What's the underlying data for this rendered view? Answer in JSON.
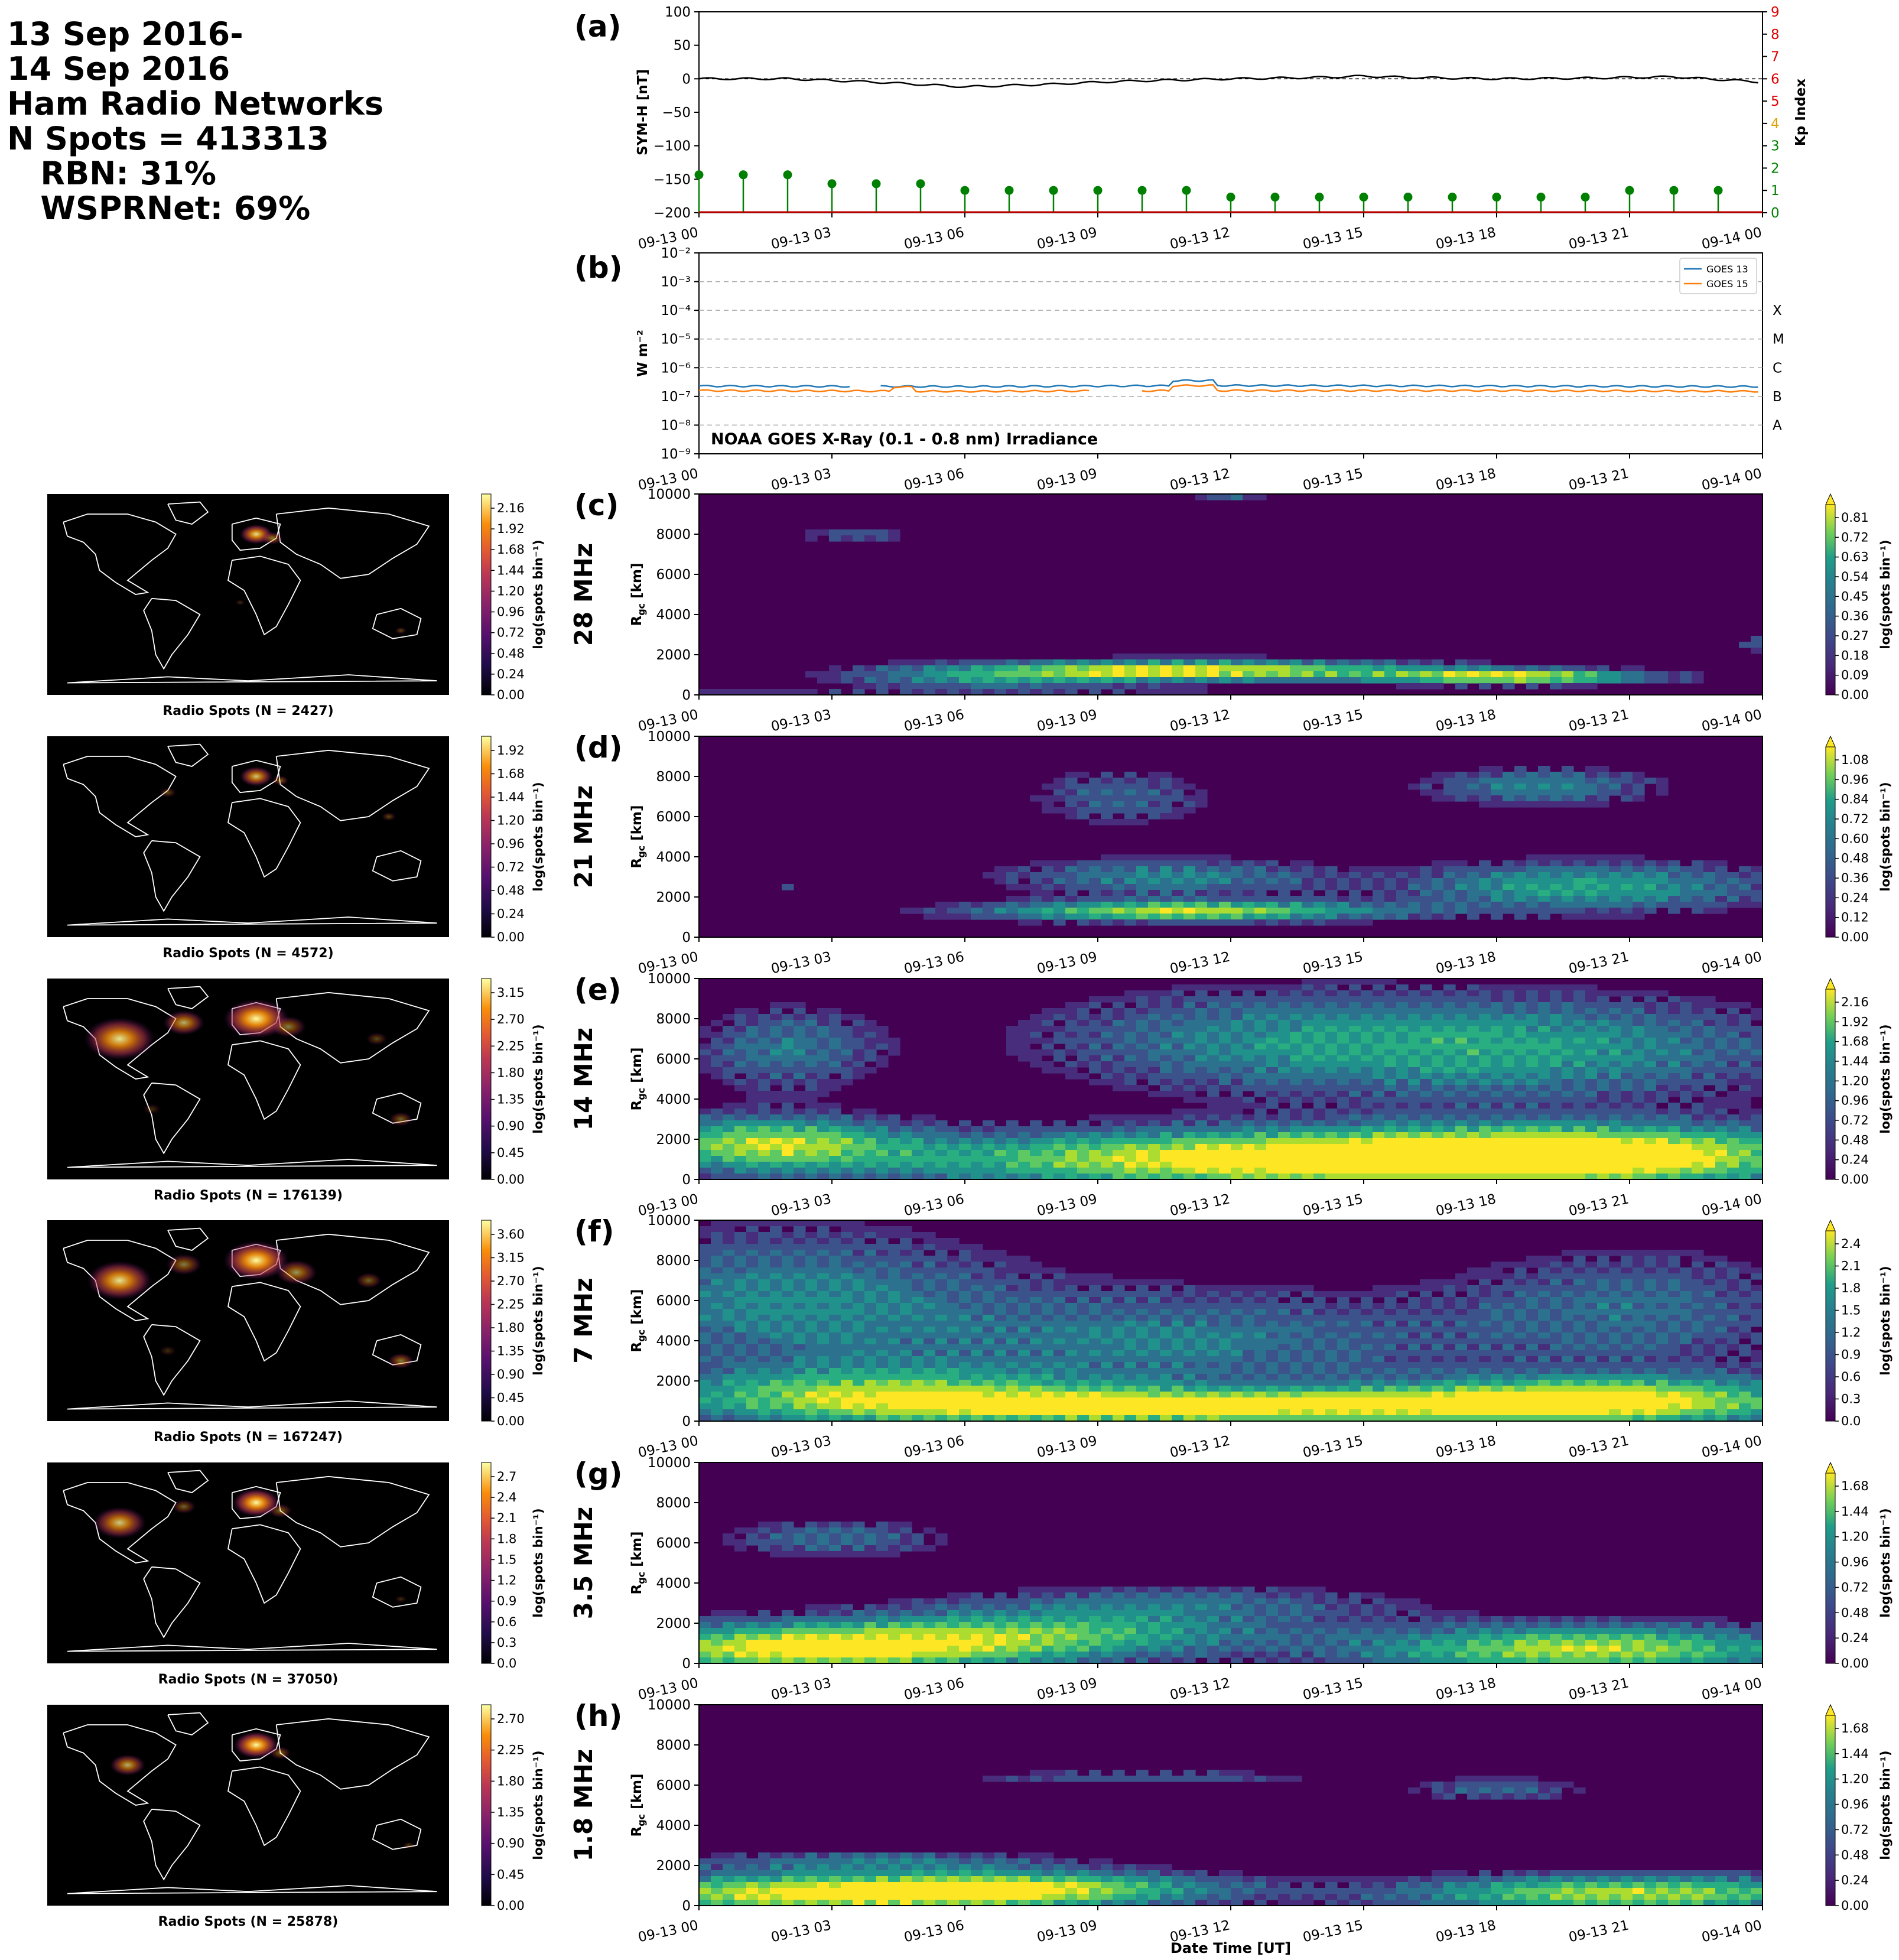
{
  "header": {
    "lines": [
      "13 Sep 2016-",
      "14 Sep 2016",
      "Ham Radio Networks",
      "N Spots = 413313",
      "   RBN: 31%",
      "   WSPRNet: 69%"
    ]
  },
  "time_ticks": [
    "09-13 00",
    "09-13 03",
    "09-13 06",
    "09-13 09",
    "09-13 12",
    "09-13 15",
    "09-13 18",
    "09-13 21",
    "09-14 00"
  ],
  "xlabel": "Date Time [UT]",
  "panel_a": {
    "letter": "(a)",
    "ylabel_left": "SYM-H [nT]",
    "ylabel_right": "Kp Index",
    "yticks_left": [
      "100",
      "50",
      "0",
      "−50",
      "−100",
      "−150",
      "−200"
    ],
    "yticks_right": [
      "9",
      "8",
      "7",
      "6",
      "5",
      "4",
      "3",
      "2",
      "1",
      "0"
    ]
  },
  "panel_b": {
    "letter": "(b)",
    "ylabel": "W m⁻²",
    "yticks": [
      "10⁻²",
      "10⁻³",
      "10⁻⁴",
      "10⁻⁵",
      "10⁻⁶",
      "10⁻⁷",
      "10⁻⁸",
      "10⁻⁹"
    ],
    "class_labels": [
      "X",
      "M",
      "C",
      "B",
      "A"
    ],
    "legend": [
      "GOES 13",
      "GOES 15"
    ],
    "annotation": "NOAA GOES X-Ray (0.1 - 0.8 nm) Irradiance"
  },
  "rgc_yticks": [
    "10000",
    "8000",
    "6000",
    "4000",
    "2000",
    "0"
  ],
  "rgc_ylabel": "R_gc [km]",
  "cbar_label": "log(spots bin⁻¹)",
  "bands": [
    {
      "letter": "(c)",
      "band": "28 MHz",
      "map_label": "Radio Spots (N = 2427)",
      "map_cbar": [
        "2.16",
        "1.92",
        "1.68",
        "1.44",
        "1.20",
        "0.96",
        "0.72",
        "0.48",
        "0.24",
        "0.00"
      ],
      "heat_cbar": [
        "0.81",
        "0.72",
        "0.63",
        "0.54",
        "0.45",
        "0.36",
        "0.27",
        "0.18",
        "0.09",
        "0.00"
      ]
    },
    {
      "letter": "(d)",
      "band": "21 MHz",
      "map_label": "Radio Spots (N = 4572)",
      "map_cbar": [
        "1.92",
        "1.68",
        "1.44",
        "1.20",
        "0.96",
        "0.72",
        "0.48",
        "0.24",
        "0.00"
      ],
      "heat_cbar": [
        "1.08",
        "0.96",
        "0.84",
        "0.72",
        "0.60",
        "0.48",
        "0.36",
        "0.24",
        "0.12",
        "0.00"
      ]
    },
    {
      "letter": "(e)",
      "band": "14 MHz",
      "map_label": "Radio Spots (N = 176139)",
      "map_cbar": [
        "3.15",
        "2.70",
        "2.25",
        "1.80",
        "1.35",
        "0.90",
        "0.45",
        "0.00"
      ],
      "heat_cbar": [
        "2.16",
        "1.92",
        "1.68",
        "1.44",
        "1.20",
        "0.96",
        "0.72",
        "0.48",
        "0.24",
        "0.00"
      ]
    },
    {
      "letter": "(f)",
      "band": "7 MHz",
      "map_label": "Radio Spots (N = 167247)",
      "map_cbar": [
        "3.60",
        "3.15",
        "2.70",
        "2.25",
        "1.80",
        "1.35",
        "0.90",
        "0.45",
        "0.00"
      ],
      "heat_cbar": [
        "2.4",
        "2.1",
        "1.8",
        "1.5",
        "1.2",
        "0.9",
        "0.6",
        "0.3",
        "0.0"
      ]
    },
    {
      "letter": "(g)",
      "band": "3.5 MHz",
      "map_label": "Radio Spots (N = 37050)",
      "map_cbar": [
        "2.7",
        "2.4",
        "2.1",
        "1.8",
        "1.5",
        "1.2",
        "0.9",
        "0.6",
        "0.3",
        "0.0"
      ],
      "heat_cbar": [
        "1.68",
        "1.44",
        "1.20",
        "0.96",
        "0.72",
        "0.48",
        "0.24",
        "0.00"
      ]
    },
    {
      "letter": "(h)",
      "band": "1.8 MHz",
      "map_label": "Radio Spots (N = 25878)",
      "map_cbar": [
        "2.70",
        "2.25",
        "1.80",
        "1.35",
        "0.90",
        "0.45",
        "0.00"
      ],
      "heat_cbar": [
        "1.68",
        "1.44",
        "1.20",
        "0.96",
        "0.72",
        "0.48",
        "0.24",
        "0.00"
      ]
    }
  ],
  "chart_data": [
    {
      "type": "line",
      "panel": "(a)",
      "series": [
        {
          "name": "SYM-H",
          "x": [
            "00",
            "02",
            "04",
            "06",
            "08",
            "09",
            "10",
            "12",
            "14",
            "15",
            "16",
            "18",
            "20",
            "22",
            "24"
          ],
          "values": [
            0,
            0,
            -5,
            -12,
            -8,
            -5,
            -3,
            0,
            2,
            4,
            2,
            0,
            1,
            3,
            -5
          ]
        },
        {
          "name": "Kp",
          "x": [
            "00",
            "01",
            "02",
            "03",
            "04",
            "05",
            "06",
            "07",
            "08",
            "09",
            "10",
            "11",
            "12",
            "13",
            "14",
            "15",
            "16",
            "17",
            "18",
            "19",
            "20",
            "21",
            "22",
            "23"
          ],
          "values": [
            1.7,
            1.7,
            1.7,
            1.3,
            1.3,
            1.3,
            1.0,
            1.0,
            1.0,
            1.0,
            1.0,
            1.0,
            0.7,
            0.7,
            0.7,
            0.7,
            0.7,
            0.7,
            0.7,
            0.7,
            0.7,
            1.0,
            1.0,
            1.0
          ]
        }
      ],
      "ylim": [
        -200,
        100
      ],
      "ylim_right": [
        0,
        9
      ]
    },
    {
      "type": "line",
      "panel": "(b)",
      "y_scale": "log",
      "ylim": [
        1e-09,
        0.01
      ],
      "series": [
        {
          "name": "GOES 13",
          "x": [
            "00",
            "06",
            "12",
            "18",
            "24"
          ],
          "values": [
            2.3e-07,
            2.2e-07,
            2.4e-07,
            2.3e-07,
            2.2e-07
          ]
        },
        {
          "name": "GOES 15",
          "x": [
            "00",
            "06",
            "12",
            "18",
            "24"
          ],
          "values": [
            1.6e-07,
            1.5e-07,
            1.6e-07,
            1.6e-07,
            1.5e-07
          ]
        }
      ]
    },
    {
      "type": "heatmap",
      "panels": [
        "(c)",
        "(d)",
        "(e)",
        "(f)",
        "(g)",
        "(h)"
      ],
      "x": "09-13 00 to 09-14 00 UT",
      "ylim": [
        0,
        10000
      ],
      "clim_max": [
        0.81,
        1.08,
        2.16,
        2.4,
        1.68,
        1.68
      ]
    }
  ]
}
